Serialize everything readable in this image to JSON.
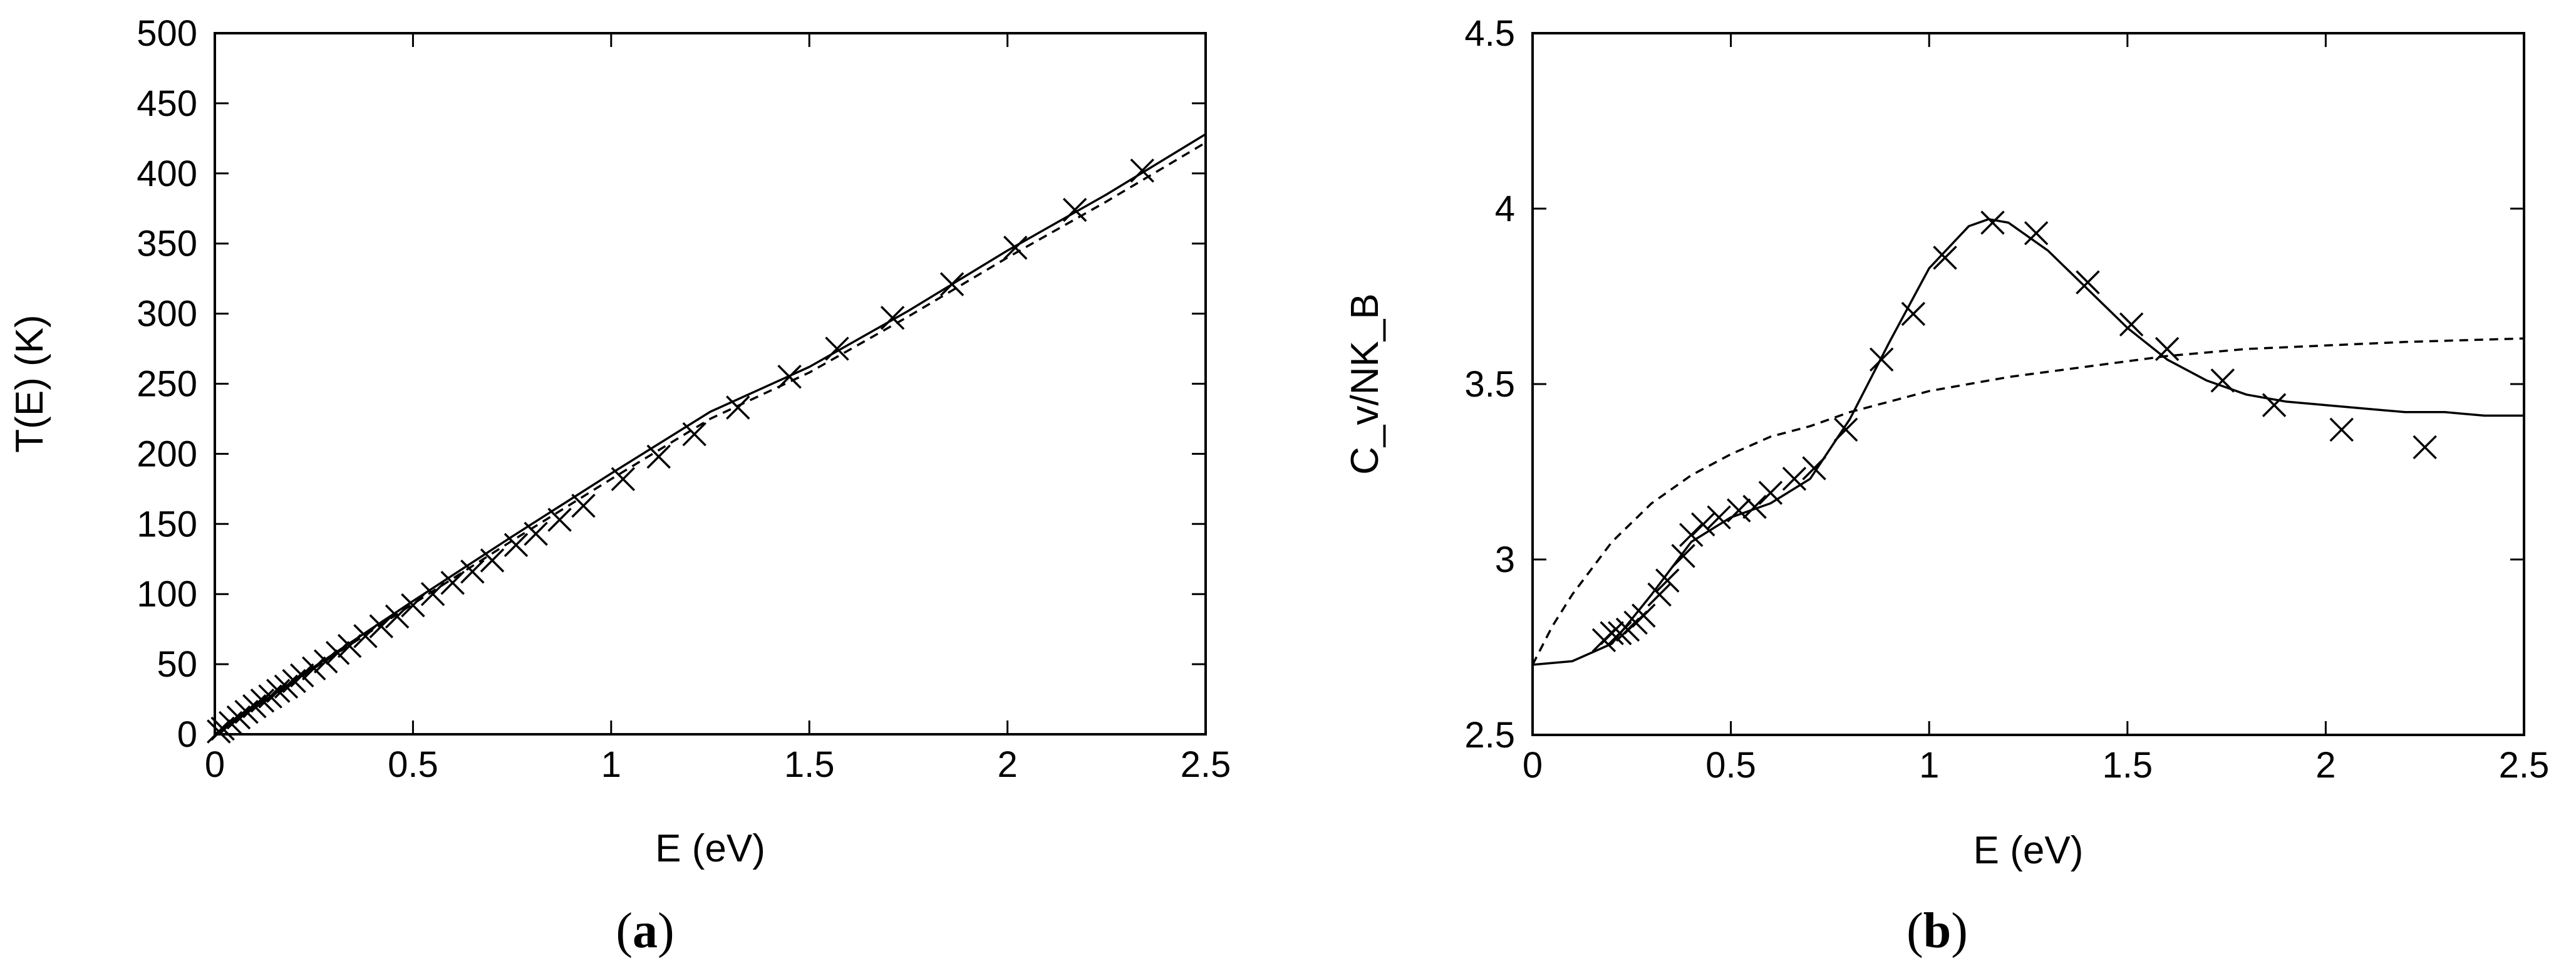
{
  "chart_data": [
    {
      "type": "line",
      "panel_label": "a",
      "xlabel": "E (eV)",
      "ylabel": "T(E) (K)",
      "xlim": [
        0,
        2.5
      ],
      "ylim": [
        0,
        500
      ],
      "xticks": [
        0,
        0.5,
        1,
        1.5,
        2,
        2.5
      ],
      "xtick_labels": [
        "0",
        "0.5",
        "1",
        "1.5",
        "2",
        "2.5"
      ],
      "yticks": [
        0,
        50,
        100,
        150,
        200,
        250,
        300,
        350,
        400,
        450,
        500
      ],
      "ytick_labels": [
        "0",
        "50",
        "100",
        "150",
        "200",
        "250",
        "300",
        "350",
        "400",
        "450",
        "500"
      ],
      "grid": false,
      "series": [
        {
          "style": "solid",
          "x": [
            0,
            0.25,
            0.5,
            0.75,
            1.0,
            1.25,
            1.5,
            1.75,
            2.0,
            2.25,
            2.5
          ],
          "values": [
            0,
            48,
            95,
            141,
            186,
            230,
            262,
            302,
            345,
            385,
            428
          ]
        },
        {
          "style": "dashed",
          "x": [
            0,
            0.25,
            0.5,
            0.75,
            1.0,
            1.25,
            1.5,
            1.75,
            2.0,
            2.25,
            2.5
          ],
          "values": [
            0,
            47,
            93,
            138,
            182,
            225,
            258,
            298,
            340,
            380,
            422
          ]
        },
        {
          "style": "markers-x",
          "x": [
            0.01,
            0.02,
            0.04,
            0.06,
            0.08,
            0.1,
            0.12,
            0.14,
            0.16,
            0.18,
            0.2,
            0.22,
            0.25,
            0.28,
            0.31,
            0.34,
            0.38,
            0.42,
            0.46,
            0.5,
            0.55,
            0.6,
            0.65,
            0.7,
            0.76,
            0.81,
            0.87,
            0.93,
            1.03,
            1.12,
            1.21,
            1.32,
            1.45,
            1.57,
            1.71,
            1.86,
            2.02,
            2.17,
            2.34
          ],
          "values": [
            2,
            4,
            8,
            12,
            16,
            20,
            24,
            27,
            31,
            34,
            38,
            42,
            47,
            52,
            58,
            63,
            70,
            77,
            84,
            92,
            100,
            108,
            116,
            124,
            135,
            143,
            153,
            163,
            182,
            198,
            214,
            233,
            255,
            275,
            297,
            321,
            347,
            374,
            402
          ]
        }
      ]
    },
    {
      "type": "line",
      "panel_label": "b",
      "xlabel": "E (eV)",
      "ylabel": "C_v/NK_B",
      "xlim": [
        0,
        2.5
      ],
      "ylim": [
        2.5,
        4.5
      ],
      "xticks": [
        0,
        0.5,
        1,
        1.5,
        2,
        2.5
      ],
      "xtick_labels": [
        "0",
        "0.5",
        "1",
        "1.5",
        "2",
        "2.5"
      ],
      "yticks": [
        2.5,
        3,
        3.5,
        4,
        4.5
      ],
      "ytick_labels": [
        "2.5",
        "3",
        "3.5",
        "4",
        "4.5"
      ],
      "grid": false,
      "series": [
        {
          "style": "solid",
          "x": [
            0,
            0.1,
            0.2,
            0.3,
            0.4,
            0.5,
            0.6,
            0.7,
            0.8,
            0.9,
            1.0,
            1.1,
            1.15,
            1.2,
            1.3,
            1.4,
            1.5,
            1.6,
            1.7,
            1.8,
            1.9,
            2.0,
            2.1,
            2.2,
            2.3,
            2.4,
            2.5
          ],
          "values": [
            2.7,
            2.71,
            2.76,
            2.9,
            3.05,
            3.12,
            3.16,
            3.23,
            3.4,
            3.62,
            3.83,
            3.95,
            3.97,
            3.96,
            3.88,
            3.77,
            3.66,
            3.57,
            3.51,
            3.47,
            3.45,
            3.44,
            3.43,
            3.42,
            3.42,
            3.41,
            3.41
          ]
        },
        {
          "style": "dashed",
          "x": [
            0,
            0.05,
            0.1,
            0.2,
            0.3,
            0.4,
            0.5,
            0.6,
            0.7,
            0.8,
            0.9,
            1.0,
            1.2,
            1.4,
            1.6,
            1.8,
            2.0,
            2.2,
            2.5
          ],
          "values": [
            2.7,
            2.81,
            2.9,
            3.05,
            3.16,
            3.24,
            3.3,
            3.35,
            3.38,
            3.42,
            3.45,
            3.48,
            3.52,
            3.55,
            3.58,
            3.6,
            3.61,
            3.62,
            3.63
          ]
        },
        {
          "style": "markers-x",
          "x": [
            0.18,
            0.2,
            0.22,
            0.24,
            0.26,
            0.28,
            0.32,
            0.34,
            0.38,
            0.4,
            0.43,
            0.47,
            0.52,
            0.56,
            0.6,
            0.66,
            0.71,
            0.79,
            0.88,
            0.96,
            1.04,
            1.16,
            1.27,
            1.4,
            1.51,
            1.6,
            1.74,
            1.87,
            2.04,
            2.25
          ],
          "values": [
            2.77,
            2.79,
            2.79,
            2.8,
            2.82,
            2.84,
            2.9,
            2.94,
            3.01,
            3.07,
            3.1,
            3.12,
            3.14,
            3.15,
            3.19,
            3.23,
            3.26,
            3.37,
            3.57,
            3.7,
            3.86,
            3.96,
            3.93,
            3.79,
            3.67,
            3.6,
            3.51,
            3.44,
            3.37,
            3.32
          ]
        }
      ]
    }
  ]
}
